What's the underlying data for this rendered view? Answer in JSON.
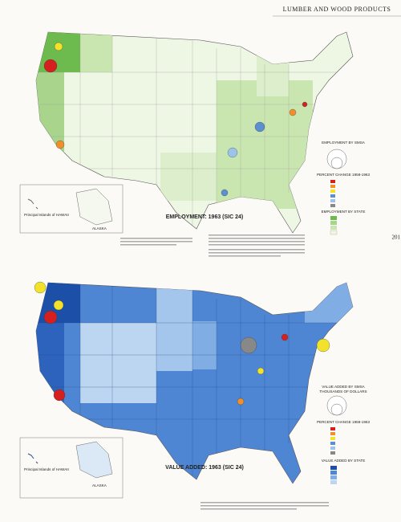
{
  "header": {
    "title": "LUMBER AND WOOD PRODUCTS",
    "page_number": "201"
  },
  "maps": [
    {
      "title": "EMPLOYMENT: 1963 (SIC 24)",
      "legend": {
        "circle_title": "EMPLOYMENT BY SMSA",
        "change_title": "PERCENT CHANGE 1958-1963",
        "state_title": "EMPLOYMENT BY STATE"
      },
      "inset_labels": [
        "Principal Islands of HAWAII",
        "ALASKA"
      ]
    },
    {
      "title": "VALUE ADDED: 1963 (SIC 24)",
      "legend": {
        "circle_title": "VALUE ADDED BY SMSA",
        "circle_subtitle": "THOUSANDS OF DOLLARS",
        "change_title": "PERCENT CHANGE 1958-1963",
        "state_title": "VALUE ADDED BY STATE"
      },
      "inset_labels": [
        "Principal Islands of HAWAII",
        "ALASKA"
      ]
    }
  ]
}
